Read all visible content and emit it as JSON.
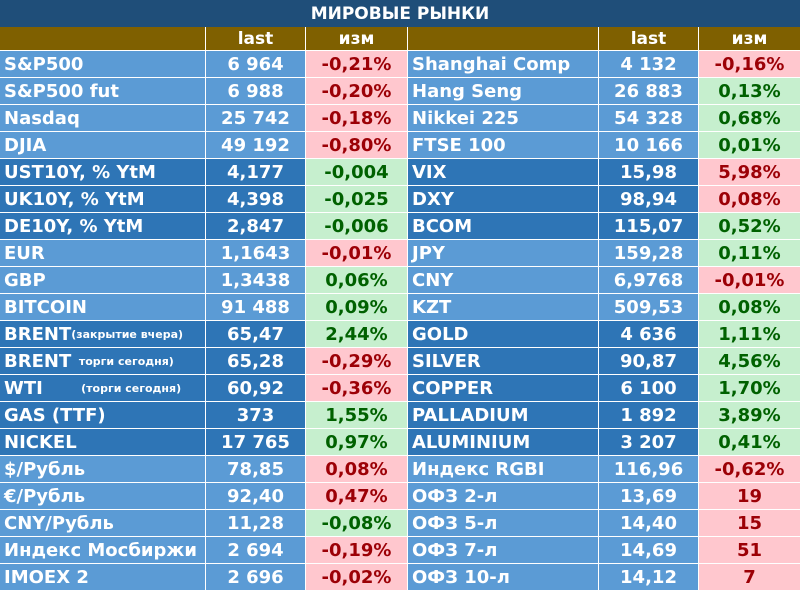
{
  "title": "МИРОВЫЕ РЫНКИ",
  "headers": {
    "left_last": "last",
    "left_chg": "изм",
    "right_last": "last",
    "right_chg": "изм"
  },
  "colors": {
    "title_bg": "#1f4e79",
    "header_bg": "#7f6000",
    "light_blue": "#5b9bd5",
    "dark_blue": "#2e75b6",
    "up_bg": "#c6efce",
    "up_text": "#006100",
    "down_bg": "#ffc7ce",
    "down_text": "#9c0006"
  },
  "groups": [
    {
      "rows": [
        {
          "l": {
            "name": "S&P500",
            "last": "6 964",
            "chg": "-0,21%",
            "dir": "dn"
          },
          "r": {
            "name": "Shanghai Comp",
            "last": "4 132",
            "chg": "-0,16%",
            "dir": "dn"
          }
        },
        {
          "l": {
            "name": "S&P500 fut",
            "last": "6 988",
            "chg": "-0,20%",
            "dir": "dn"
          },
          "r": {
            "name": "Hang Seng",
            "last": "26 883",
            "chg": "0,13%",
            "dir": "up"
          }
        },
        {
          "l": {
            "name": "Nasdaq",
            "last": "25 742",
            "chg": "-0,18%",
            "dir": "dn"
          },
          "r": {
            "name": "Nikkei 225",
            "last": "54 328",
            "chg": "0,68%",
            "dir": "up"
          }
        },
        {
          "l": {
            "name": "DJIA",
            "last": "49 192",
            "chg": "-0,80%",
            "dir": "dn"
          },
          "r": {
            "name": "FTSE 100",
            "last": "10 166",
            "chg": "0,01%",
            "dir": "up"
          }
        }
      ]
    },
    {
      "rows": [
        {
          "l": {
            "name": "UST10Y, % YtM",
            "last": "4,177",
            "chg": "-0,004",
            "dir": "up"
          },
          "r": {
            "name": "VIX",
            "last": "15,98",
            "chg": "5,98%",
            "dir": "dn"
          }
        },
        {
          "l": {
            "name": "UK10Y, % YtM",
            "last": "4,398",
            "chg": "-0,025",
            "dir": "up"
          },
          "r": {
            "name": "DXY",
            "last": "98,94",
            "chg": "0,08%",
            "dir": "dn"
          }
        },
        {
          "l": {
            "name": "DE10Y, % YtM",
            "last": "2,847",
            "chg": "-0,006",
            "dir": "up"
          },
          "r": {
            "name": "BCOM",
            "last": "115,07",
            "chg": "0,52%",
            "dir": "up"
          }
        }
      ]
    },
    {
      "rows": [
        {
          "l": {
            "name": "EUR",
            "last": "1,1643",
            "chg": "-0,01%",
            "dir": "dn"
          },
          "r": {
            "name": "JPY",
            "last": "159,28",
            "chg": "0,11%",
            "dir": "up"
          }
        },
        {
          "l": {
            "name": "GBP",
            "last": "1,3438",
            "chg": "0,06%",
            "dir": "up"
          },
          "r": {
            "name": "CNY",
            "last": "6,9768",
            "chg": "-0,01%",
            "dir": "dn"
          }
        },
        {
          "l": {
            "name": "BITCOIN",
            "last": "91 488",
            "chg": "0,09%",
            "dir": "up"
          },
          "r": {
            "name": "KZT",
            "last": "509,53",
            "chg": "0,08%",
            "dir": "up"
          }
        }
      ]
    },
    {
      "rows": [
        {
          "l": {
            "name": "BRENT",
            "note": "(закрытие вчера)",
            "last": "65,47",
            "chg": "2,44%",
            "dir": "up"
          },
          "r": {
            "name": "GOLD",
            "last": "4 636",
            "chg": "1,11%",
            "dir": "up"
          }
        },
        {
          "l": {
            "name": "BRENT",
            "note": "  торги сегодня)",
            "last": "65,28",
            "chg": "-0,29%",
            "dir": "dn"
          },
          "r": {
            "name": "SILVER",
            "last": "90,87",
            "chg": "4,56%",
            "dir": "up"
          }
        },
        {
          "l": {
            "name": "WTI",
            "note": "          (торги сегодня)",
            "last": "60,92",
            "chg": "-0,36%",
            "dir": "dn"
          },
          "r": {
            "name": "COPPER",
            "last": "6 100",
            "chg": "1,70%",
            "dir": "up"
          }
        },
        {
          "l": {
            "name": "GAS (TTF)",
            "last": "373",
            "chg": "1,55%",
            "dir": "up"
          },
          "r": {
            "name": "PALLADIUM",
            "last": "1 892",
            "chg": "3,89%",
            "dir": "up"
          }
        },
        {
          "l": {
            "name": "NICKEL",
            "last": "17 765",
            "chg": "0,97%",
            "dir": "up"
          },
          "r": {
            "name": "ALUMINIUM",
            "last": "3 207",
            "chg": "0,41%",
            "dir": "up"
          }
        }
      ]
    },
    {
      "rows": [
        {
          "l": {
            "name": "$/Рубль",
            "last": "78,85",
            "chg": "0,08%",
            "dir": "dn"
          },
          "r": {
            "name": "Индекс RGBI",
            "last": "116,96",
            "chg": "-0,62%",
            "dir": "dn"
          }
        },
        {
          "l": {
            "name": "€/Рубль",
            "last": "92,40",
            "chg": "0,47%",
            "dir": "dn"
          },
          "r": {
            "name": "ОФЗ 2-л",
            "last": "13,69",
            "chg": "19",
            "dir": "dn"
          }
        },
        {
          "l": {
            "name": "CNY/Рубль",
            "last": "11,28",
            "chg": "-0,08%",
            "dir": "up"
          },
          "r": {
            "name": "ОФЗ 5-л",
            "last": "14,40",
            "chg": "15",
            "dir": "dn"
          }
        },
        {
          "l": {
            "name": "Индекс Мосбиржи",
            "last": "2 694",
            "chg": "-0,19%",
            "dir": "dn"
          },
          "r": {
            "name": "ОФЗ 7-л",
            "last": "14,69",
            "chg": "51",
            "dir": "dn"
          }
        },
        {
          "l": {
            "name": "IMOEX 2",
            "last": "2 696",
            "chg": "-0,02%",
            "dir": "dn"
          },
          "r": {
            "name": "ОФЗ 10-л",
            "last": "14,12",
            "chg": "7",
            "dir": "dn"
          }
        }
      ]
    }
  ]
}
